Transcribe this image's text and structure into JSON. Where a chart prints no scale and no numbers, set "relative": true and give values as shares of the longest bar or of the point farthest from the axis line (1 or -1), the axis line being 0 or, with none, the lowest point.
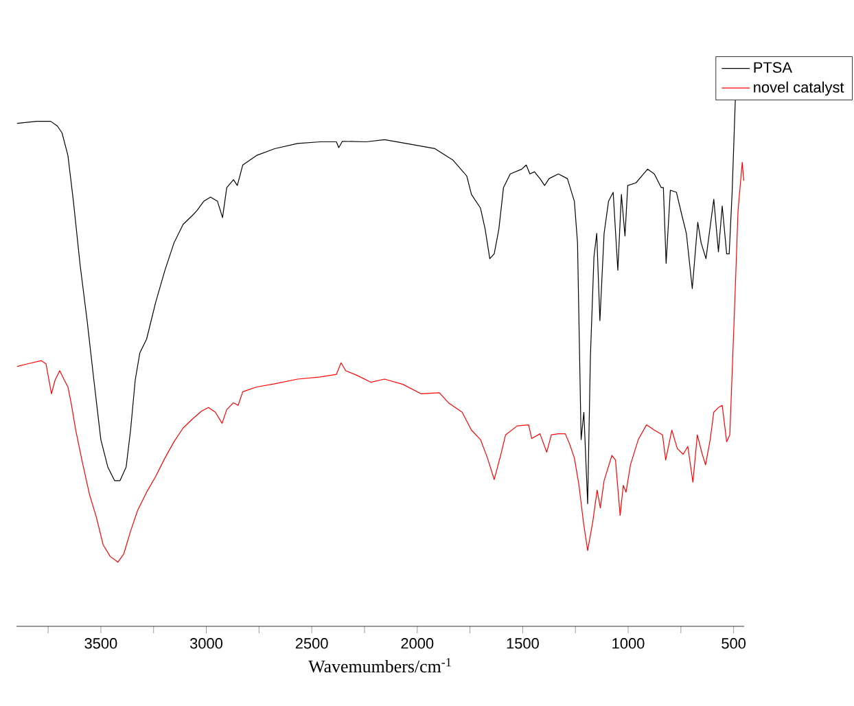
{
  "chart_data": {
    "type": "line",
    "relative": true,
    "xlabel": "Wavemumbers/cm$^{-1}$",
    "xlim": [
      3900,
      450
    ],
    "xticks": [
      {
        "value": 3750,
        "label": null
      },
      3500,
      {
        "value": 3250,
        "label": null
      },
      3000,
      {
        "value": 2750,
        "label": null
      },
      2500,
      {
        "value": 2250,
        "label": null
      },
      2000,
      {
        "value": 1750,
        "label": null
      },
      1500,
      {
        "value": 1250,
        "label": null
      },
      1000,
      {
        "value": 750,
        "label": null
      },
      500
    ],
    "legend": "top right",
    "series": [
      {
        "name": "PTSA",
        "color": "#000000",
        "x": [
          3897,
          3803,
          3738,
          3706,
          3684,
          3656,
          3630,
          3598,
          3565,
          3533,
          3500,
          3467,
          3435,
          3409,
          3380,
          3359,
          3337,
          3315,
          3283,
          3240,
          3196,
          3153,
          3110,
          3066,
          3045,
          3012,
          2980,
          2947,
          2923,
          2903,
          2871,
          2853,
          2827,
          2762,
          2676,
          2567,
          2459,
          2383,
          2372,
          2355,
          2242,
          2155,
          2025,
          1916,
          1830,
          1765,
          1743,
          1700,
          1678,
          1656,
          1635,
          1613,
          1591,
          1559,
          1505,
          1483,
          1466,
          1444,
          1418,
          1396,
          1375,
          1331,
          1288,
          1255,
          1240,
          1223,
          1210,
          1192,
          1179,
          1162,
          1149,
          1134,
          1114,
          1093,
          1071,
          1049,
          1032,
          1015,
          1002,
          963,
          908,
          876,
          843,
          833,
          820,
          800,
          771,
          745,
          724,
          696,
          670,
          654,
          631,
          594,
          572,
          554,
          533,
          521,
          507,
          492
        ],
        "values": [
          0.956,
          0.96,
          0.96,
          0.951,
          0.938,
          0.895,
          0.808,
          0.686,
          0.581,
          0.468,
          0.355,
          0.303,
          0.277,
          0.277,
          0.303,
          0.373,
          0.468,
          0.52,
          0.546,
          0.616,
          0.677,
          0.729,
          0.764,
          0.781,
          0.79,
          0.808,
          0.816,
          0.808,
          0.777,
          0.834,
          0.849,
          0.838,
          0.877,
          0.895,
          0.908,
          0.918,
          0.921,
          0.921,
          0.91,
          0.922,
          0.921,
          0.925,
          0.916,
          0.908,
          0.886,
          0.856,
          0.821,
          0.795,
          0.755,
          0.699,
          0.708,
          0.755,
          0.834,
          0.86,
          0.869,
          0.877,
          0.86,
          0.864,
          0.851,
          0.838,
          0.851,
          0.86,
          0.851,
          0.808,
          0.729,
          0.355,
          0.407,
          0.233,
          0.512,
          0.703,
          0.747,
          0.581,
          0.747,
          0.808,
          0.825,
          0.677,
          0.821,
          0.742,
          0.838,
          0.843,
          0.869,
          0.86,
          0.834,
          0.834,
          0.69,
          0.829,
          0.825,
          0.781,
          0.747,
          0.642,
          0.768,
          0.729,
          0.699,
          0.812,
          0.712,
          0.799,
          0.708,
          0.708,
          0.825,
          1.0
        ]
      },
      {
        "name": "novel catalyst",
        "color": "#ff0000",
        "x": [
          3897,
          3847,
          3782,
          3760,
          3734,
          3717,
          3695,
          3673,
          3656,
          3641,
          3619,
          3587,
          3554,
          3521,
          3489,
          3456,
          3419,
          3391,
          3359,
          3326,
          3283,
          3240,
          3196,
          3153,
          3110,
          3066,
          3023,
          2990,
          2957,
          2925,
          2903,
          2871,
          2849,
          2827,
          2762,
          2676,
          2567,
          2459,
          2383,
          2361,
          2339,
          2285,
          2220,
          2155,
          2068,
          1981,
          1895,
          1852,
          1787,
          1743,
          1700,
          1667,
          1635,
          1602,
          1581,
          1526,
          1472,
          1457,
          1418,
          1386,
          1364,
          1331,
          1298,
          1277,
          1255,
          1233,
          1212,
          1192,
          1168,
          1147,
          1132,
          1114,
          1077,
          1060,
          1038,
          1023,
          1010,
          989,
          952,
          913,
          876,
          837,
          822,
          793,
          767,
          739,
          717,
          693,
          672,
          650,
          633,
          611,
          594,
          572,
          554,
          533,
          518,
          496,
          479,
          459,
          452
        ],
        "values": [
          0.494,
          0.499,
          0.505,
          0.499,
          0.442,
          0.468,
          0.486,
          0.468,
          0.455,
          0.425,
          0.373,
          0.311,
          0.251,
          0.207,
          0.155,
          0.133,
          0.122,
          0.138,
          0.181,
          0.22,
          0.255,
          0.285,
          0.32,
          0.351,
          0.377,
          0.394,
          0.409,
          0.416,
          0.407,
          0.386,
          0.412,
          0.425,
          0.42,
          0.446,
          0.455,
          0.461,
          0.47,
          0.474,
          0.479,
          0.501,
          0.486,
          0.477,
          0.464,
          0.47,
          0.46,
          0.442,
          0.444,
          0.425,
          0.407,
          0.373,
          0.355,
          0.32,
          0.279,
          0.329,
          0.364,
          0.381,
          0.383,
          0.357,
          0.366,
          0.331,
          0.364,
          0.366,
          0.366,
          0.346,
          0.32,
          0.268,
          0.198,
          0.144,
          0.198,
          0.259,
          0.225,
          0.277,
          0.325,
          0.316,
          0.211,
          0.268,
          0.255,
          0.307,
          0.355,
          0.383,
          0.373,
          0.364,
          0.316,
          0.373,
          0.338,
          0.327,
          0.342,
          0.274,
          0.364,
          0.329,
          0.307,
          0.355,
          0.407,
          0.416,
          0.42,
          0.351,
          0.364,
          0.599,
          0.79,
          0.882,
          0.847
        ]
      }
    ]
  }
}
